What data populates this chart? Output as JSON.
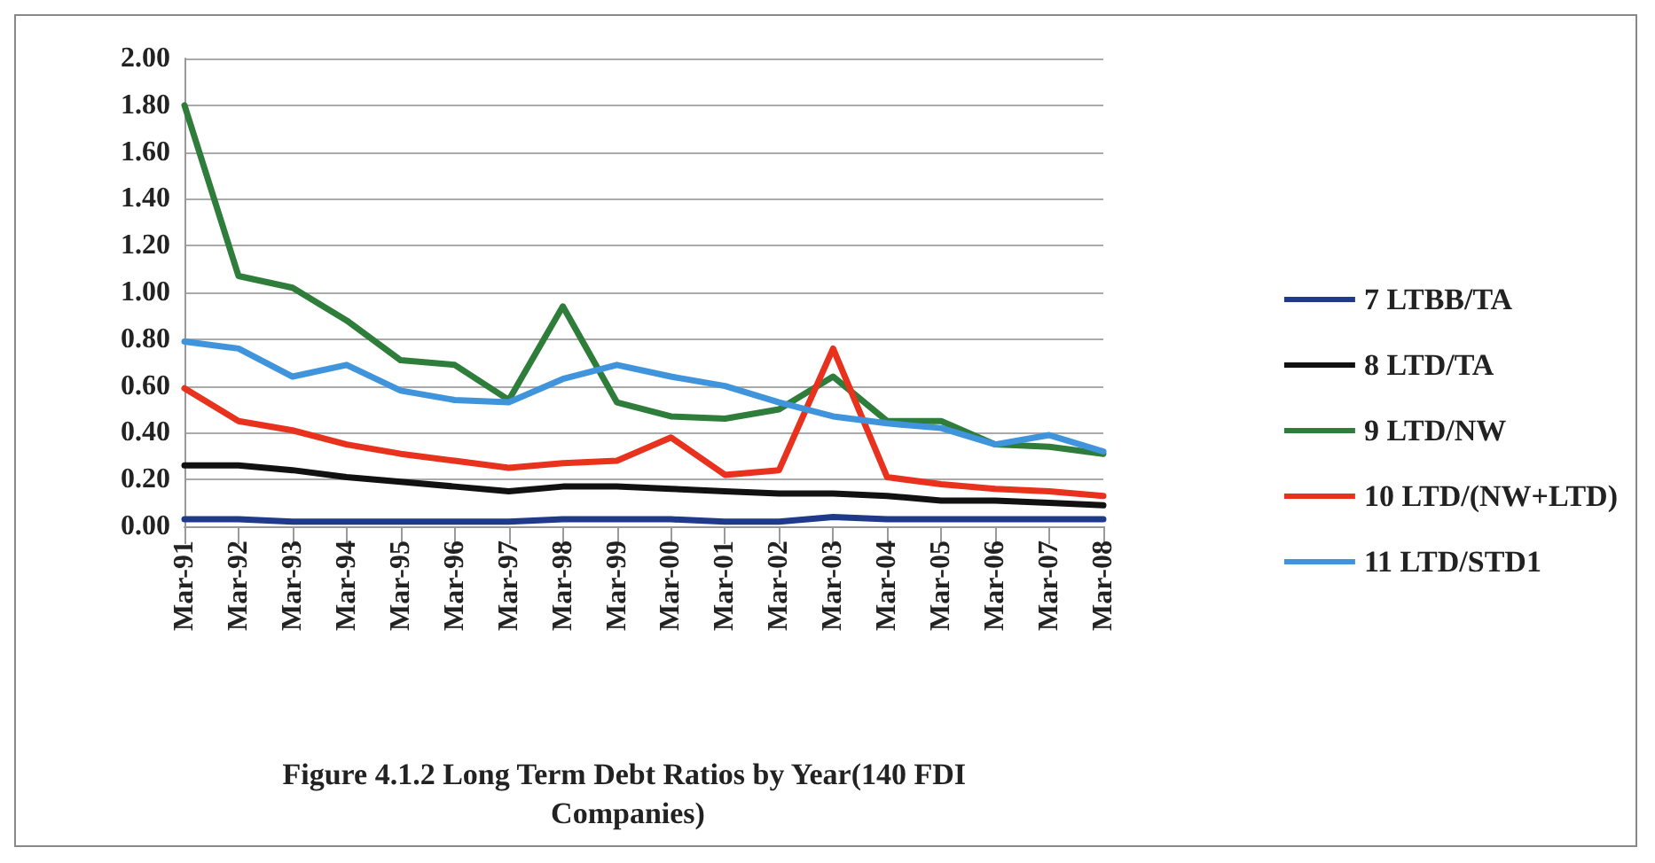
{
  "chart_data": {
    "type": "line",
    "title": "Figure 4.1.2 Long Term Debt Ratios by Year(140 FDI Companies)",
    "categories": [
      "Mar-91",
      "Mar-92",
      "Mar-93",
      "Mar-94",
      "Mar-95",
      "Mar-96",
      "Mar-97",
      "Mar-98",
      "Mar-99",
      "Mar-00",
      "Mar-01",
      "Mar-02",
      "Mar-03",
      "Mar-04",
      "Mar-05",
      "Mar-06",
      "Mar-07",
      "Mar-08"
    ],
    "series": [
      {
        "name": "7 LTBB/TA",
        "color": "#1f3a8a",
        "values": [
          0.03,
          0.03,
          0.02,
          0.02,
          0.02,
          0.02,
          0.02,
          0.03,
          0.03,
          0.03,
          0.02,
          0.02,
          0.04,
          0.03,
          0.03,
          0.03,
          0.03,
          0.03
        ]
      },
      {
        "name": "8 LTD/TA",
        "color": "#111111",
        "values": [
          0.26,
          0.26,
          0.24,
          0.21,
          0.19,
          0.17,
          0.15,
          0.17,
          0.17,
          0.16,
          0.15,
          0.14,
          0.14,
          0.13,
          0.11,
          0.11,
          0.1,
          0.09
        ]
      },
      {
        "name": "9 LTD/NW",
        "color": "#2e7d3a",
        "values": [
          1.8,
          1.07,
          1.02,
          0.88,
          0.71,
          0.69,
          0.54,
          0.94,
          0.53,
          0.47,
          0.46,
          0.5,
          0.64,
          0.45,
          0.45,
          0.35,
          0.34,
          0.31
        ]
      },
      {
        "name": "10 LTD/(NW+LTD)",
        "color": "#e8321e",
        "values": [
          0.59,
          0.45,
          0.41,
          0.35,
          0.31,
          0.28,
          0.25,
          0.27,
          0.28,
          0.38,
          0.22,
          0.24,
          0.76,
          0.21,
          0.18,
          0.16,
          0.15,
          0.13
        ]
      },
      {
        "name": "11 LTD/STD1",
        "color": "#3f94dc",
        "values": [
          0.79,
          0.76,
          0.64,
          0.69,
          0.58,
          0.54,
          0.53,
          0.63,
          0.69,
          0.64,
          0.6,
          0.53,
          0.47,
          0.44,
          0.42,
          0.35,
          0.39,
          0.32
        ]
      }
    ],
    "ylim": [
      0,
      2
    ],
    "yticks": [
      {
        "value": 0,
        "label": "0.00"
      },
      {
        "value": 0.2,
        "label": "0.20"
      },
      {
        "value": 0.4,
        "label": "0.40"
      },
      {
        "value": 0.6,
        "label": "0.60"
      },
      {
        "value": 0.8,
        "label": "0.80"
      },
      {
        "value": 1,
        "label": "1.00"
      },
      {
        "value": 1.2,
        "label": "1.20"
      },
      {
        "value": 1.4,
        "label": "1.40"
      },
      {
        "value": 1.6,
        "label": "1.60"
      },
      {
        "value": 1.8,
        "label": "1.80"
      },
      {
        "value": 2,
        "label": "2.00"
      }
    ],
    "grid": "y",
    "legend": "right",
    "marker": "none",
    "line_style": "solid"
  }
}
